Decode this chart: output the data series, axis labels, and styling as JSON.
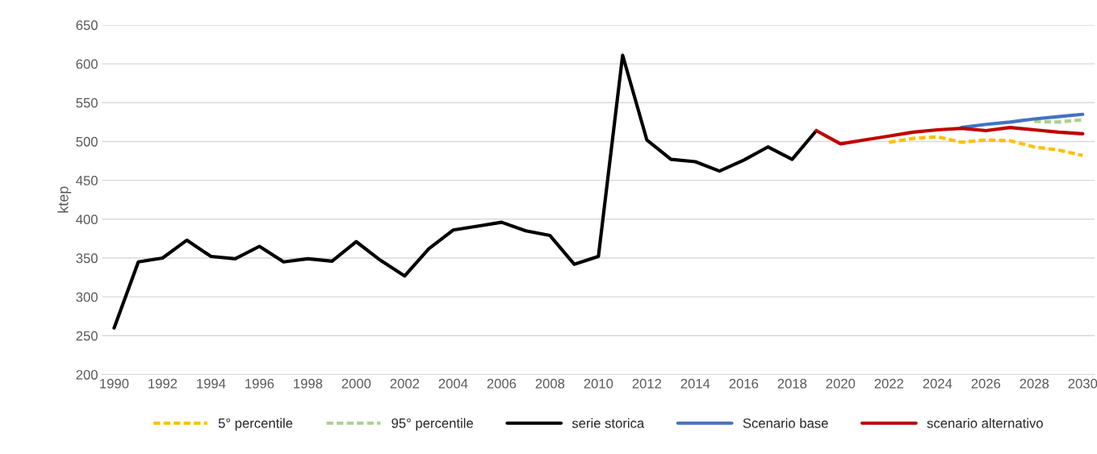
{
  "chart_data": {
    "type": "line",
    "ylabel": "ktep",
    "xlim": [
      1989.5,
      2030.5
    ],
    "xticks": [
      1990,
      1992,
      1994,
      1996,
      1998,
      2000,
      2002,
      2004,
      2006,
      2008,
      2010,
      2012,
      2014,
      2016,
      2018,
      2020,
      2022,
      2024,
      2026,
      2028,
      2030
    ],
    "ylim": [
      200,
      650
    ],
    "yticks": [
      200,
      250,
      300,
      350,
      400,
      450,
      500,
      550,
      600,
      650
    ],
    "grid": "y",
    "legend": "bottom",
    "marker": "none",
    "series": [
      {
        "name": "5° percentile",
        "color": "#ffc000",
        "line_style": "dashed",
        "x": [
          2022,
          2023,
          2024,
          2025,
          2026,
          2027,
          2028,
          2029,
          2030
        ],
        "values": [
          499,
          504,
          506,
          499,
          502,
          501,
          493,
          489,
          482
        ]
      },
      {
        "name": "95° percentile",
        "color": "#a9d18e",
        "line_style": "dashed",
        "x": [
          2028,
          2029,
          2030
        ],
        "values": [
          526,
          525,
          528
        ]
      },
      {
        "name": "serie storica",
        "color": "#000000",
        "line_style": "solid",
        "x": [
          1990,
          1991,
          1992,
          1993,
          1994,
          1995,
          1996,
          1997,
          1998,
          1999,
          2000,
          2001,
          2002,
          2003,
          2004,
          2005,
          2006,
          2007,
          2008,
          2009,
          2010,
          2011,
          2012,
          2013,
          2014,
          2015,
          2016,
          2017,
          2018,
          2019
        ],
        "values": [
          260,
          345,
          350,
          373,
          352,
          349,
          365,
          345,
          349,
          346,
          371,
          347,
          327,
          362,
          386,
          391,
          396,
          385,
          379,
          342,
          352,
          611,
          502,
          477,
          474,
          462,
          476,
          493,
          477,
          514
        ]
      },
      {
        "name": "Scenario base",
        "color": "#4472c4",
        "line_style": "solid",
        "x": [
          2025,
          2026,
          2027,
          2028,
          2029,
          2030
        ],
        "values": [
          518,
          522,
          525,
          529,
          532,
          535
        ]
      },
      {
        "name": "scenario alternativo",
        "color": "#c00000",
        "line_style": "solid",
        "x": [
          2019,
          2020,
          2021,
          2022,
          2023,
          2024,
          2025,
          2026,
          2027,
          2028,
          2029,
          2030
        ],
        "values": [
          514,
          497,
          502,
          507,
          512,
          515,
          517,
          514,
          518,
          515,
          512,
          510
        ]
      }
    ]
  }
}
